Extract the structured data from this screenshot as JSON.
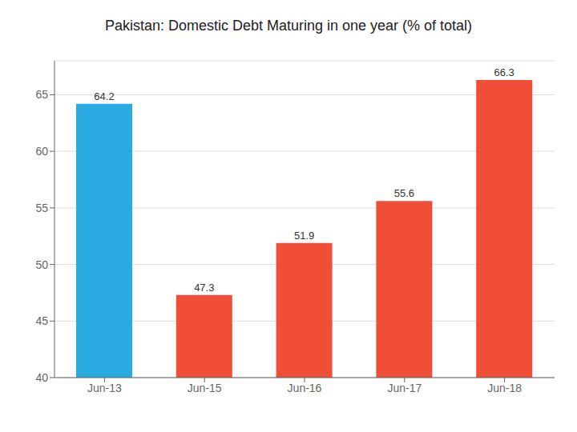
{
  "chart_data": {
    "type": "bar",
    "title": "Pakistan: Domestic Debt Maturing in one year (% of total)",
    "categories": [
      "Jun-13",
      "Jun-15",
      "Jun-16",
      "Jun-17",
      "Jun-18"
    ],
    "values": [
      64.2,
      47.3,
      51.9,
      55.6,
      66.3
    ],
    "colors": [
      "#29ABE2",
      "#F04E37",
      "#F04E37",
      "#F04E37",
      "#F04E37"
    ],
    "ylim": [
      40,
      68
    ],
    "yticks": [
      40,
      45,
      50,
      55,
      60,
      65
    ],
    "grid": true,
    "data_labels": true
  }
}
